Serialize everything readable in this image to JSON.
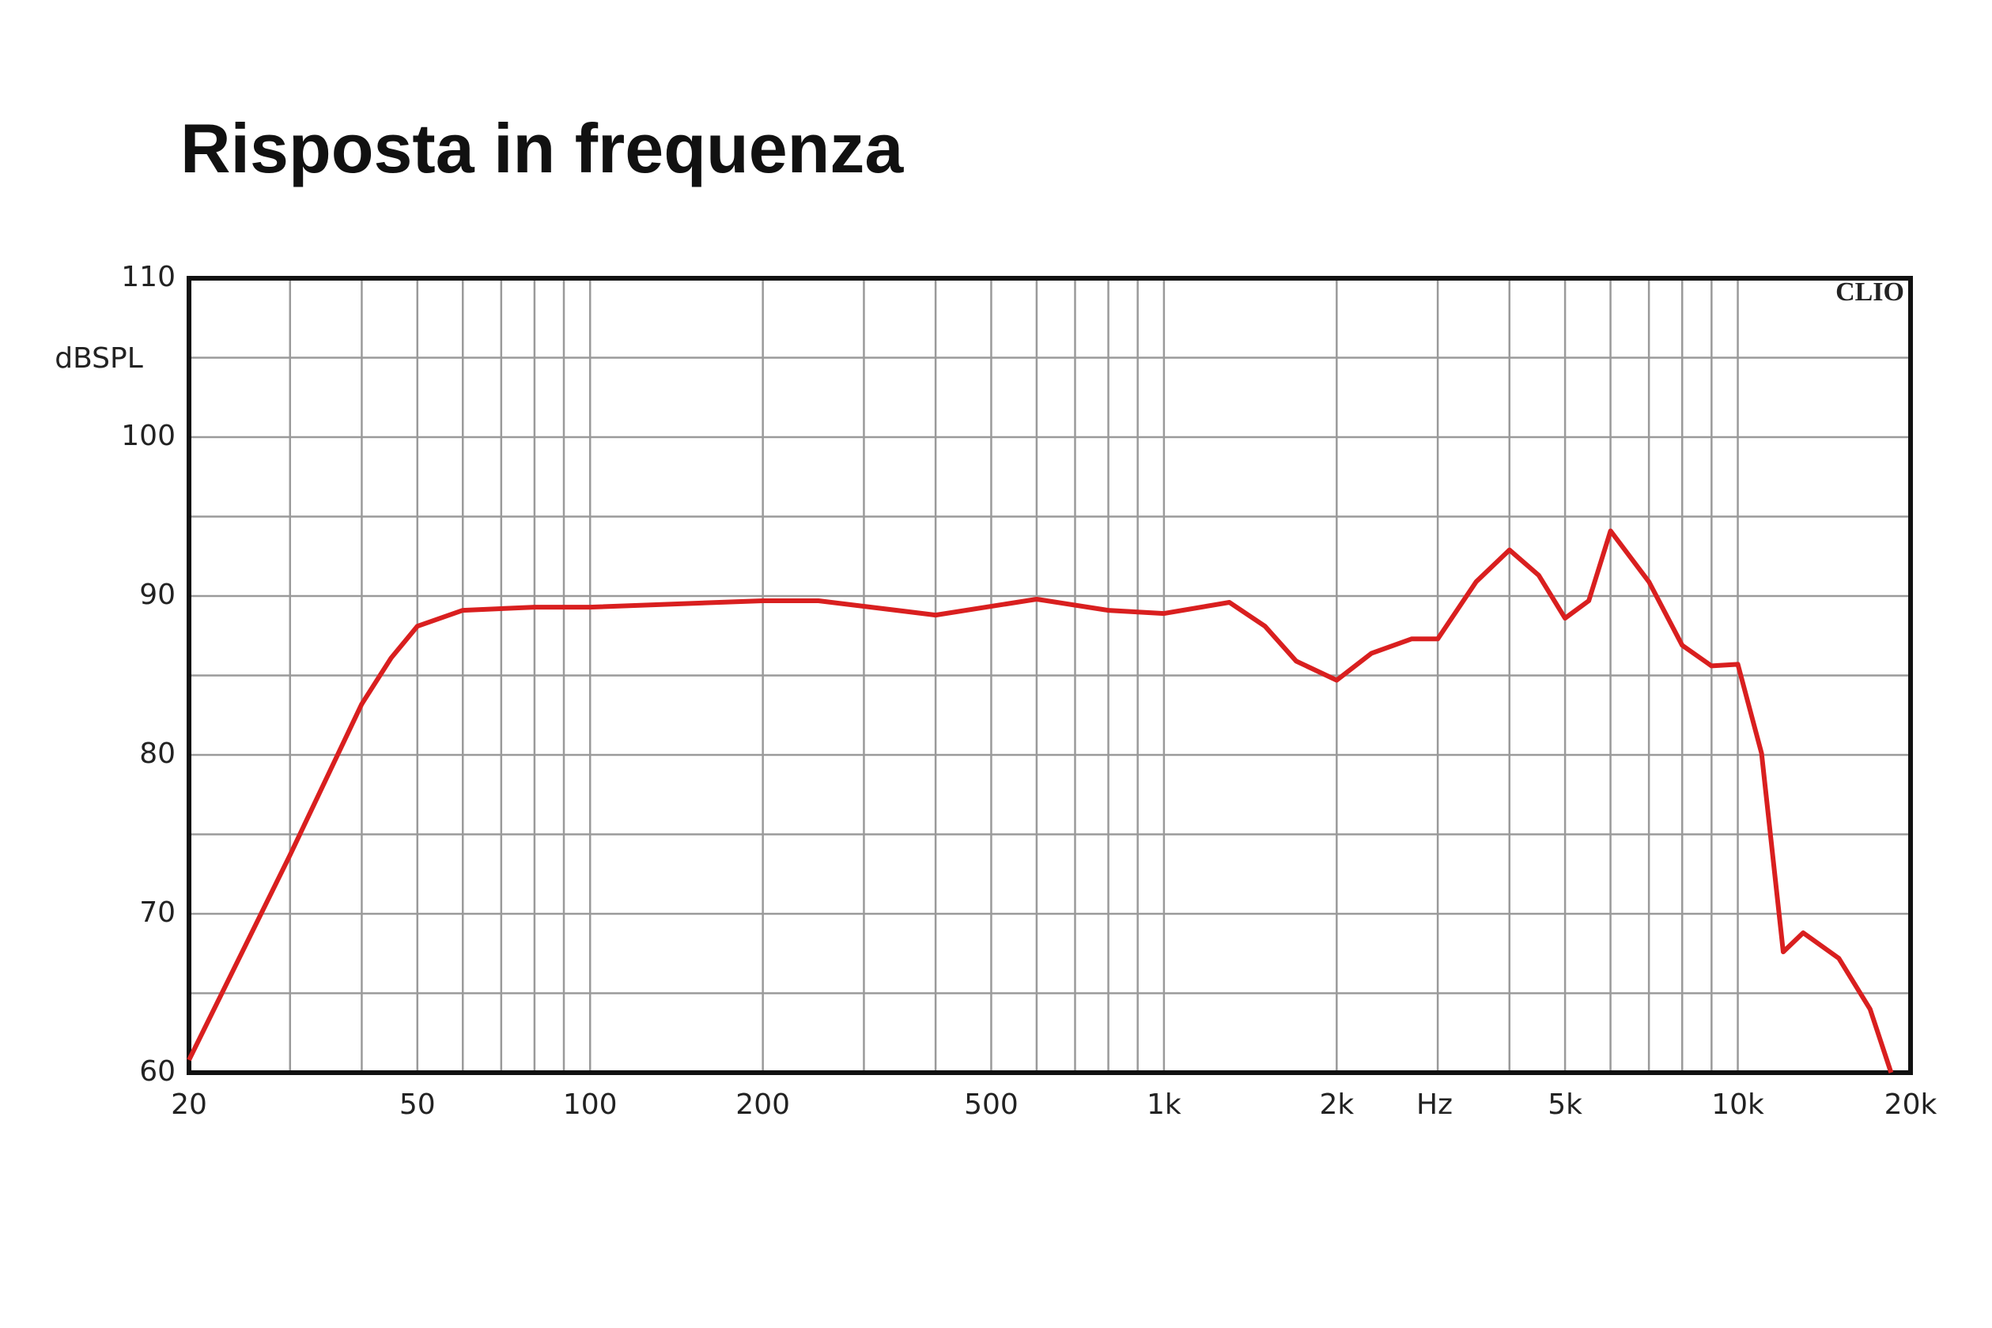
{
  "chart_data": {
    "type": "line",
    "title": "Risposta in frequenza",
    "ylabel": "dBSPL",
    "xlabel": "Hz",
    "annotation": "CLIO",
    "xscale": "log",
    "grid": true,
    "x": [
      20,
      30,
      40,
      45,
      50,
      60,
      80,
      100,
      200,
      250,
      400,
      600,
      800,
      1000,
      1300,
      1500,
      1700,
      2000,
      2300,
      2700,
      3000,
      3500,
      4000,
      4500,
      5000,
      5500,
      6000,
      7000,
      8000,
      9000,
      10000,
      11000,
      12000,
      13000,
      15000,
      17000,
      18500
    ],
    "series": [
      {
        "name": "SPL",
        "color": "#d91f1f",
        "values": [
          60.8,
          73.7,
          83.2,
          86.1,
          88.1,
          89.1,
          89.3,
          89.3,
          89.7,
          89.7,
          88.8,
          89.8,
          89.1,
          88.9,
          89.6,
          88.1,
          85.9,
          84.7,
          86.4,
          87.3,
          87.3,
          90.9,
          92.9,
          91.3,
          88.6,
          89.7,
          94.1,
          90.9,
          86.9,
          85.6,
          85.7,
          80.1,
          67.6,
          68.8,
          67.2,
          64.0,
          60
        ]
      }
    ],
    "xlim": [
      20,
      20000
    ],
    "ylim": [
      60,
      110
    ],
    "xticks": [
      20,
      50,
      100,
      200,
      500,
      {
        "value": 1000,
        "label": "1k"
      },
      {
        "value": 2000,
        "label": "2k"
      },
      {
        "value": 5000,
        "label": "5k"
      },
      {
        "value": 10000,
        "label": "10k"
      },
      {
        "value": 20000,
        "label": "20k"
      }
    ],
    "minor_xticks": [
      30,
      40,
      60,
      70,
      80,
      90,
      300,
      400,
      600,
      700,
      800,
      900,
      3000,
      4000,
      6000,
      7000,
      8000,
      9000
    ],
    "yticks": [
      60,
      70,
      80,
      90,
      100,
      110
    ],
    "minor_yticks": [
      65,
      75,
      85,
      95,
      105
    ]
  }
}
